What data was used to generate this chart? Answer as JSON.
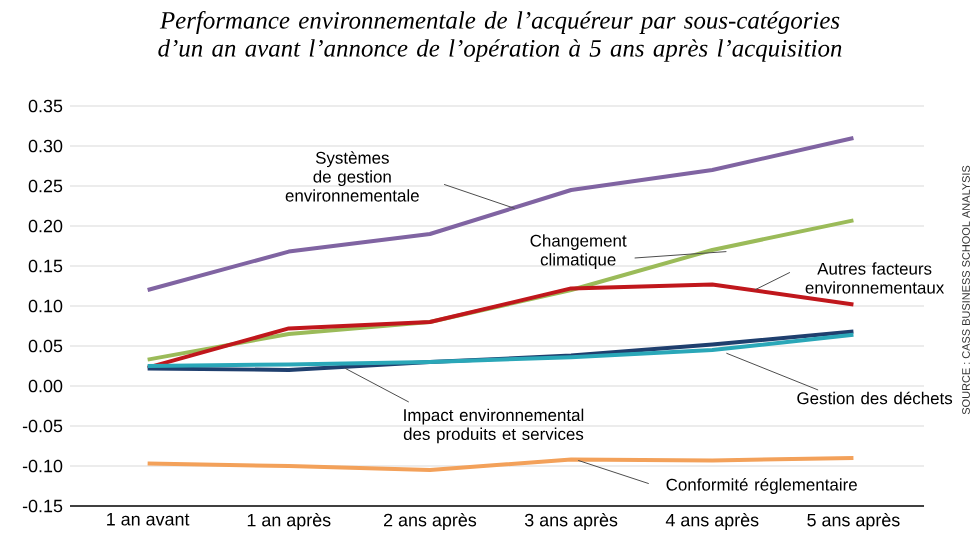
{
  "chart_data": {
    "type": "line",
    "title": "Performance environnementale de l’acquéreur par sous-catégories d’un an avant l’annonce de l’opération à 5 ans après l’acquisition",
    "categories": [
      "1 an avant",
      "1 an après",
      "2 ans après",
      "3 ans après",
      "4 ans après",
      "5 ans après"
    ],
    "series": [
      {
        "name": "Systèmes de gestion environnementale",
        "color": "#8064a2",
        "values": [
          0.12,
          0.168,
          0.19,
          0.245,
          0.27,
          0.31
        ]
      },
      {
        "name": "Changement climatique",
        "color": "#9bbb59",
        "values": [
          0.033,
          0.065,
          0.08,
          0.12,
          0.17,
          0.207
        ]
      },
      {
        "name": "Autres facteurs environnementaux",
        "color": "#c0171c",
        "values": [
          0.023,
          0.072,
          0.08,
          0.122,
          0.127,
          0.102
        ]
      },
      {
        "name": "Impact environnemental des produits et services",
        "color": "#1f3f6e",
        "values": [
          0.022,
          0.02,
          0.03,
          0.038,
          0.052,
          0.068
        ]
      },
      {
        "name": "Gestion des déchets",
        "color": "#2aa7b8",
        "values": [
          0.025,
          0.027,
          0.03,
          0.036,
          0.045,
          0.064
        ]
      },
      {
        "name": "Conformité réglementaire",
        "color": "#f3a15a",
        "values": [
          -0.097,
          -0.1,
          -0.105,
          -0.092,
          -0.093,
          -0.09
        ]
      }
    ],
    "ylim": [
      -0.15,
      0.35
    ],
    "yticks": [
      {
        "value": -0.15,
        "label": "-0.15"
      },
      {
        "value": -0.1,
        "label": "-0.10"
      },
      {
        "value": -0.05,
        "label": "-0.05"
      },
      {
        "value": 0,
        "label": "0.00"
      },
      {
        "value": 0.05,
        "label": "0.05"
      },
      {
        "value": 0.1,
        "label": "0.10"
      },
      {
        "value": 0.15,
        "label": "0.15"
      },
      {
        "value": 0.2,
        "label": "0.20"
      },
      {
        "value": 0.25,
        "label": "0.25"
      },
      {
        "value": 0.3,
        "label": "0.30"
      },
      {
        "value": 0.35,
        "label": "0.35"
      }
    ],
    "grid": "y",
    "annotations": [
      "SOURCE : CASS BUSINESS SCHOOL ANALYSIS"
    ]
  }
}
